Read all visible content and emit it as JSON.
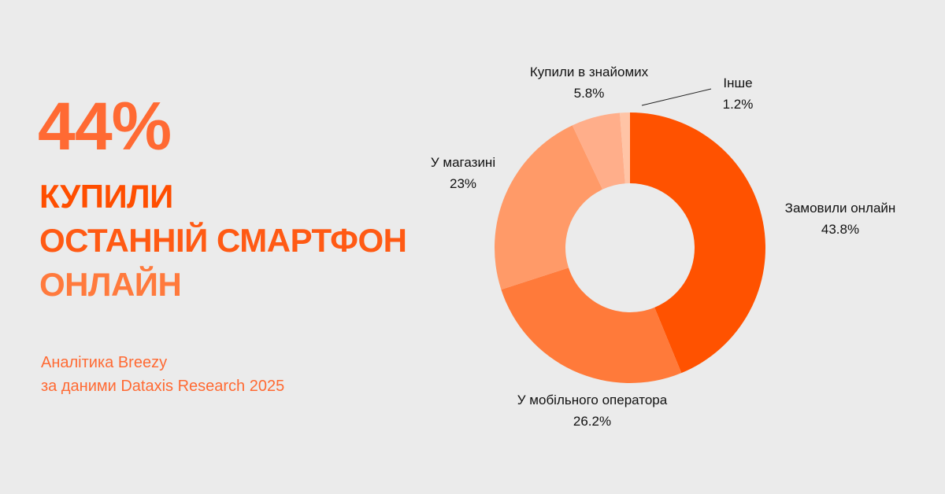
{
  "headline": {
    "big_number": "44%",
    "line1": "КУПИЛИ",
    "line2": "ОСТАННІЙ СМАРТФОН",
    "line3": "ОНЛАЙН"
  },
  "source": {
    "line1": "Аналітика Breezy",
    "line2": "за даними Dataxis Research 2025"
  },
  "chart_data": {
    "type": "pie",
    "donut": true,
    "slices": [
      {
        "name": "Замовили онлайн",
        "value": 43.8,
        "label": "43.8%",
        "color": "#ff5200"
      },
      {
        "name": "У мобільного оператора",
        "value": 26.2,
        "label": "26.2%",
        "color": "#ff7a3a"
      },
      {
        "name": "У магазині",
        "value": 23,
        "label": "23%",
        "color": "#ff9a68"
      },
      {
        "name": "Купили в знайомих",
        "value": 5.8,
        "label": "5.8%",
        "color": "#ffae8a"
      },
      {
        "name": "Інше",
        "value": 1.2,
        "label": "1.2%",
        "color": "#ffc4a6"
      }
    ]
  }
}
